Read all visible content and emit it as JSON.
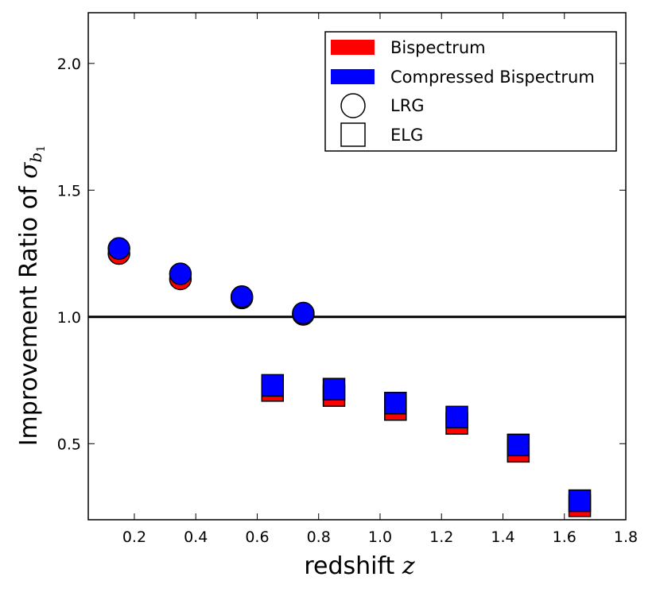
{
  "chart_data": {
    "type": "scatter",
    "xlabel": "redshift",
    "xlabel_var": "z",
    "ylabel": "Improvement Ratio of",
    "ylabel_var": "σ",
    "ylabel_sub": "b",
    "ylabel_subsub": "1",
    "xlim": [
      0.05,
      1.8
    ],
    "ylim": [
      0.2,
      2.2
    ],
    "xticks": [
      0.2,
      0.4,
      0.6,
      0.8,
      1.0,
      1.2,
      1.4,
      1.6,
      1.8
    ],
    "xtick_labels": [
      "0.2",
      "0.4",
      "0.6",
      "0.8",
      "1.0",
      "1.2",
      "1.4",
      "1.6",
      "1.8"
    ],
    "yticks": [
      0.5,
      1.0,
      1.5,
      2.0
    ],
    "ytick_labels": [
      "0.5",
      "1.0",
      "1.5",
      "2.0"
    ],
    "reference_line": 1.0,
    "series": [
      {
        "name": "Bispectrum",
        "color": "#ff0000",
        "lrg": {
          "x": [
            0.15,
            0.35,
            0.55,
            0.75
          ],
          "y": [
            1.25,
            1.15,
            1.075,
            1.01
          ]
        },
        "elg": {
          "x": [
            0.65,
            0.85,
            1.05,
            1.25,
            1.45,
            1.65
          ],
          "y": [
            0.71,
            0.69,
            0.635,
            0.58,
            0.47,
            0.255
          ]
        }
      },
      {
        "name": "Compressed Bispectrum",
        "color": "#0000ff",
        "lrg": {
          "x": [
            0.15,
            0.35,
            0.55,
            0.75
          ],
          "y": [
            1.27,
            1.17,
            1.08,
            1.015
          ]
        },
        "elg": {
          "x": [
            0.65,
            0.85,
            1.05,
            1.25,
            1.45,
            1.65
          ],
          "y": [
            0.73,
            0.715,
            0.66,
            0.605,
            0.495,
            0.275
          ]
        }
      }
    ],
    "legend": {
      "position": "top-right",
      "entries": [
        {
          "label": "Bispectrum",
          "kind": "patch",
          "color": "#ff0000"
        },
        {
          "label": "Compressed Bispectrum",
          "kind": "patch",
          "color": "#0000ff"
        },
        {
          "label": "LRG",
          "kind": "circle"
        },
        {
          "label": "ELG",
          "kind": "square"
        }
      ]
    }
  }
}
